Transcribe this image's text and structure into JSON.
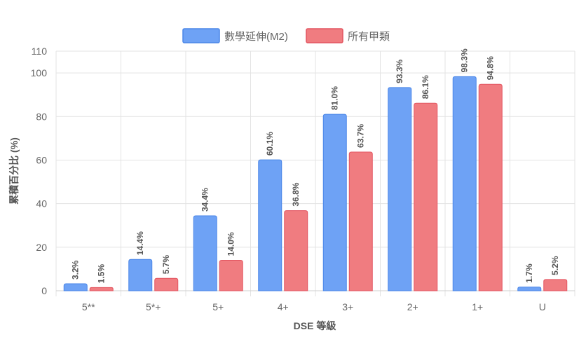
{
  "chart_data": {
    "type": "bar",
    "categories": [
      "5**",
      "5*+",
      "5+",
      "4+",
      "3+",
      "2+",
      "1+",
      "U"
    ],
    "series": [
      {
        "name": "數學延伸(M2)",
        "values": [
          3.2,
          14.4,
          34.4,
          60.1,
          81.0,
          93.3,
          98.3,
          1.7
        ],
        "labels": [
          "3.2%",
          "14.4%",
          "34.4%",
          "60.1%",
          "81.0%",
          "93.3%",
          "98.3%",
          "1.7%"
        ],
        "color": "#6ea2f5",
        "border": "#4a86e8"
      },
      {
        "name": "所有甲類",
        "values": [
          1.5,
          5.7,
          14.0,
          36.8,
          63.7,
          86.1,
          94.8,
          5.2
        ],
        "labels": [
          "1.5%",
          "5.7%",
          "14.0%",
          "36.8%",
          "63.7%",
          "86.1%",
          "94.8%",
          "5.2%"
        ],
        "color": "#f07c80",
        "border": "#e35560"
      }
    ],
    "xlabel": "DSE 等級",
    "ylabel": "累積百分比 (%)",
    "ylim": [
      0,
      110
    ],
    "yticks": [
      "0",
      "20",
      "40",
      "60",
      "80",
      "100",
      "110"
    ],
    "ytick_values": [
      0,
      20,
      40,
      60,
      80,
      100,
      110
    ],
    "grid": true,
    "legend_position": "top-center"
  }
}
